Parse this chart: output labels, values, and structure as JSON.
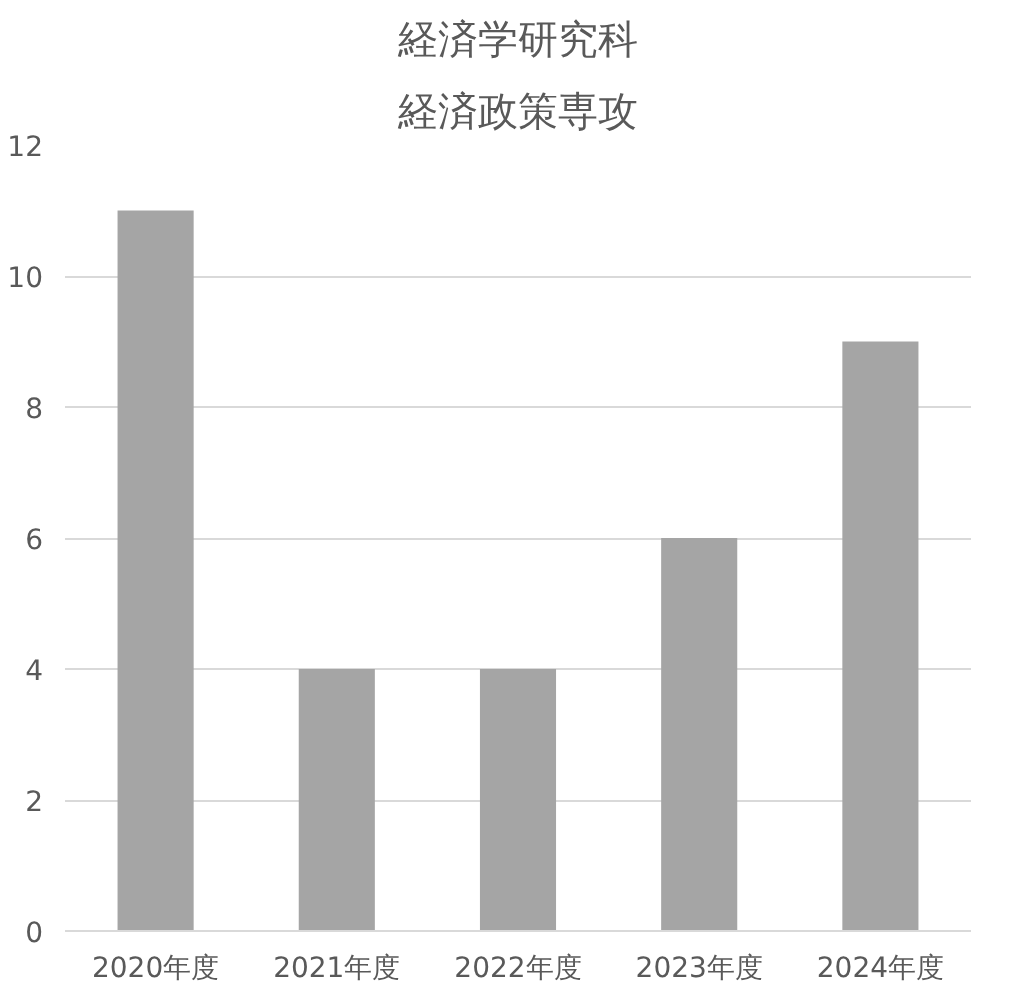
{
  "chart_data": {
    "type": "bar",
    "title": "経済学研究科",
    "subtitle": "経済政策専攻",
    "categories": [
      "2020年度",
      "2021年度",
      "2022年度",
      "2023年度",
      "2024年度"
    ],
    "values": [
      11,
      4,
      4,
      6,
      9
    ],
    "color": "#a5a5a5",
    "ylim": [
      0,
      12
    ],
    "yticks": [
      0,
      2,
      4,
      6,
      8,
      10,
      12
    ],
    "grid": "y"
  }
}
